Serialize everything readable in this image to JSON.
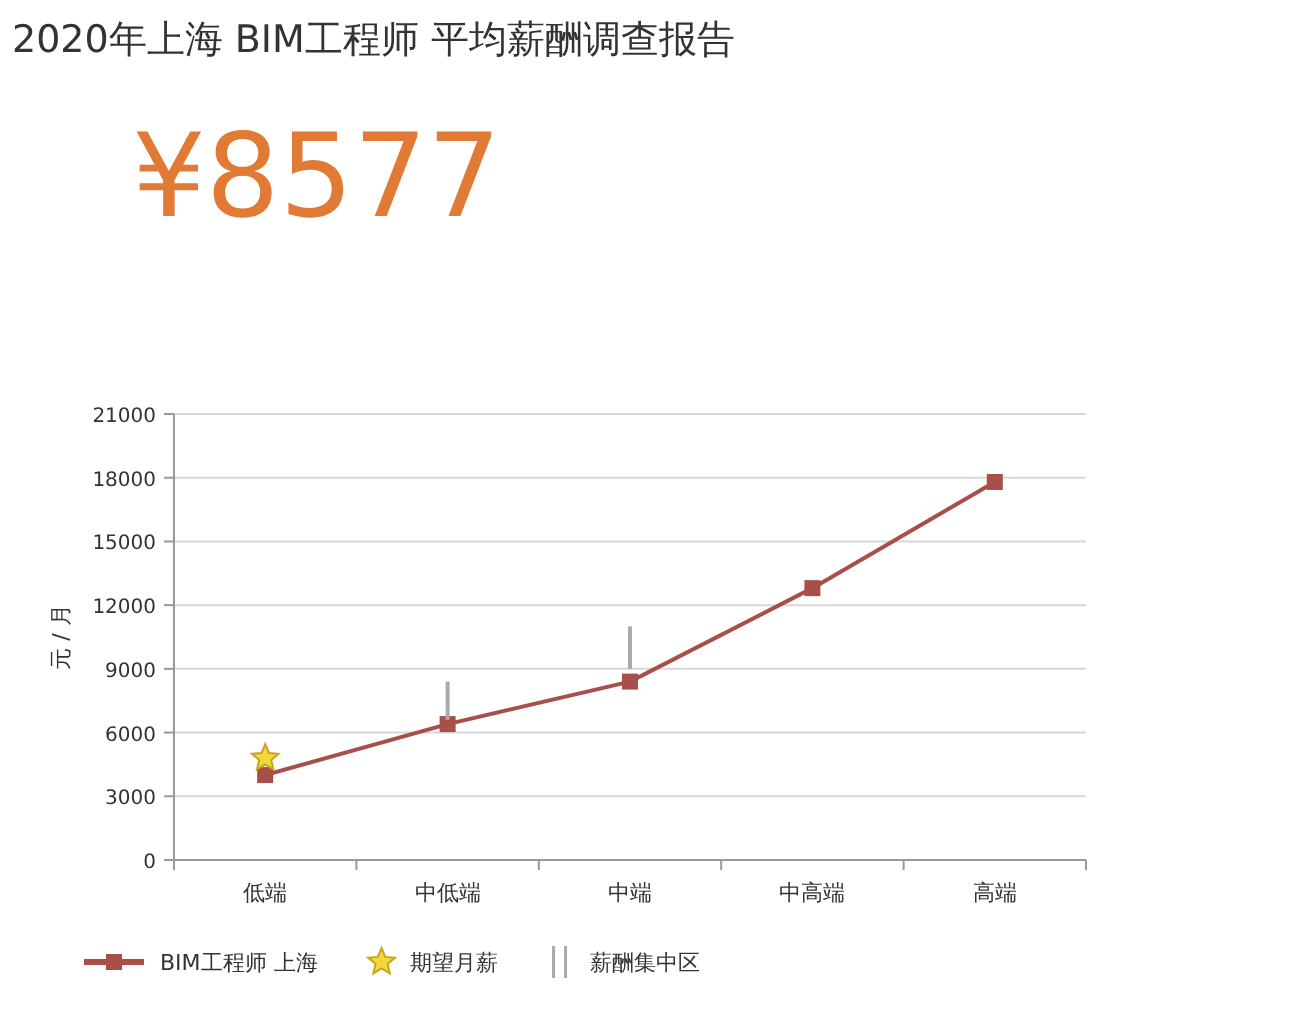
{
  "chart_data": {
    "type": "line",
    "title": "2020年上海 BIM工程师 平均薪酬调查报告",
    "annotations": [
      "¥8577"
    ],
    "ylabel": "元 / 月",
    "categories": [
      "低端",
      "中低端",
      "中端",
      "中高端",
      "高端"
    ],
    "series": [
      {
        "name": "BIM工程师 上海",
        "color": "#a94f4a",
        "values": [
          4000,
          6400,
          8400,
          12800,
          17800
        ],
        "marker": "square"
      },
      {
        "name": "期望月薪",
        "type": "scatter",
        "color": "#f2d83c",
        "values": [
          4800,
          null,
          null,
          null,
          null
        ],
        "marker": "star"
      },
      {
        "name": "薪酬集中区",
        "type": "bar",
        "color": "#aaaaaa",
        "base": [
          null,
          6600,
          9000,
          null,
          null
        ],
        "values": [
          null,
          1800,
          2000,
          null,
          null
        ]
      }
    ],
    "ylim": [
      0,
      21000
    ],
    "yticks": [
      0,
      3000,
      6000,
      9000,
      12000,
      15000,
      18000,
      21000
    ],
    "grid": "y",
    "legend": "bottom left"
  }
}
